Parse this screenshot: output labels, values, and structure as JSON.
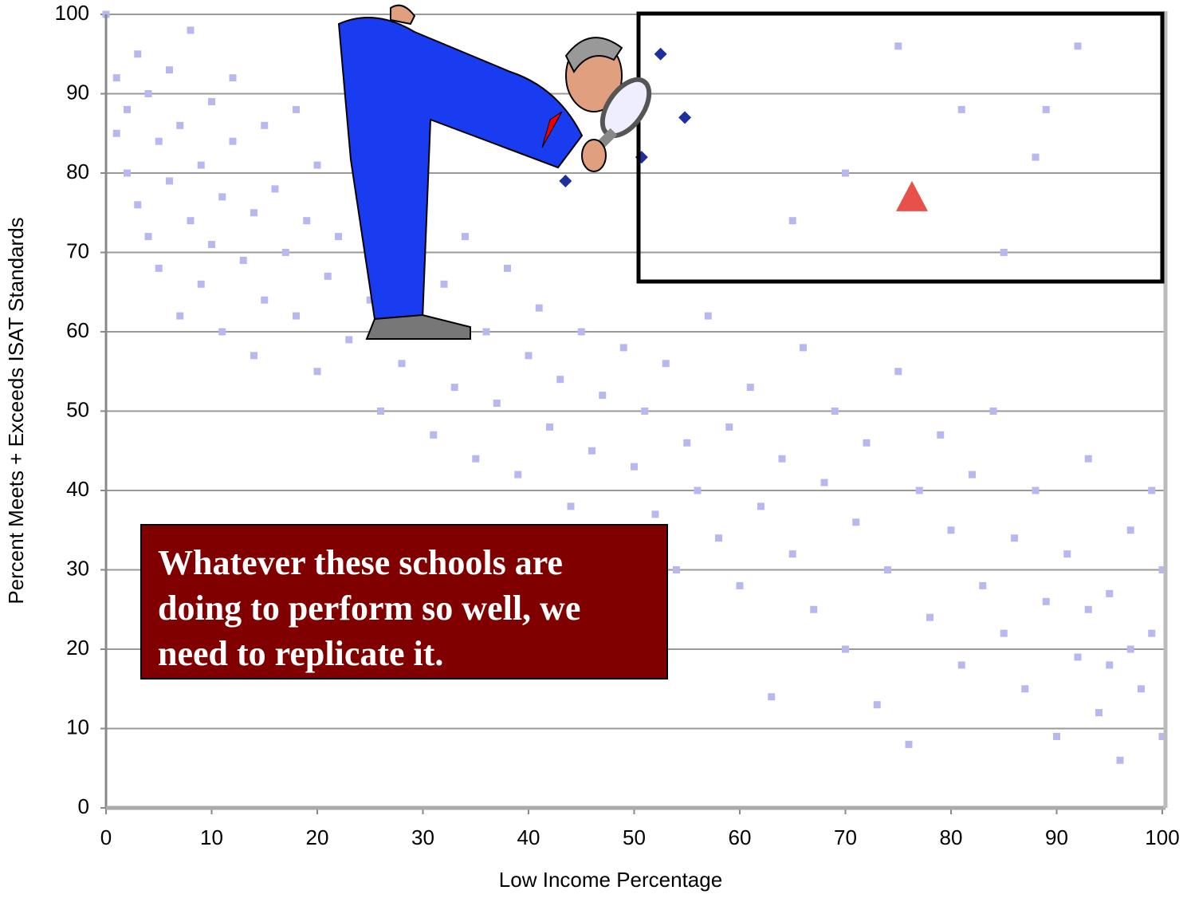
{
  "chart_data": {
    "type": "scatter",
    "ylabel": "Percent Meets + Exceeds ISAT Standards",
    "xlabel": "Low Income Percentage",
    "annotation": "Whatever these schools are doing to perform so well, we need to replicate it.",
    "xlim": [
      0,
      100
    ],
    "ylim": [
      0,
      100
    ],
    "xticks": [
      0,
      10,
      20,
      30,
      40,
      50,
      60,
      70,
      80,
      90,
      100
    ],
    "yticks": [
      0,
      10,
      20,
      30,
      40,
      50,
      60,
      70,
      80,
      90,
      100
    ],
    "grid": true,
    "series": [
      {
        "color": "#b8b8f0",
        "marker": "square",
        "x": [
          0,
          1,
          1,
          2,
          2,
          3,
          3,
          4,
          4,
          5,
          5,
          6,
          6,
          7,
          7,
          8,
          8,
          9,
          9,
          10,
          10,
          11,
          11,
          12,
          12,
          13,
          14,
          14,
          15,
          15,
          16,
          17,
          18,
          18,
          19,
          20,
          20,
          21,
          22,
          23,
          24,
          25,
          26,
          27,
          28,
          29,
          30,
          31,
          32,
          33,
          34,
          35,
          36,
          37,
          38,
          39,
          40,
          41,
          42,
          43,
          44,
          45,
          46,
          47,
          48,
          49,
          50,
          51,
          52,
          53,
          54,
          55,
          56,
          57,
          58,
          59,
          60,
          61,
          62,
          63,
          64,
          65,
          66,
          67,
          68,
          69,
          70,
          71,
          72,
          73,
          74,
          75,
          76,
          77,
          78,
          79,
          80,
          81,
          82,
          83,
          84,
          85,
          86,
          87,
          88,
          89,
          90,
          91,
          92,
          93,
          94,
          95,
          96,
          97,
          98,
          99,
          100,
          100,
          99,
          97,
          95,
          93,
          75,
          81,
          89,
          88,
          92,
          85,
          70,
          65
        ],
        "values": [
          100,
          92,
          85,
          88,
          80,
          95,
          76,
          90,
          72,
          84,
          68,
          93,
          79,
          86,
          62,
          74,
          98,
          81,
          66,
          89,
          71,
          77,
          60,
          84,
          92,
          69,
          75,
          57,
          86,
          64,
          78,
          70,
          62,
          88,
          74,
          81,
          55,
          67,
          72,
          59,
          85,
          64,
          50,
          70,
          56,
          76,
          61,
          47,
          66,
          53,
          72,
          44,
          60,
          51,
          68,
          42,
          57,
          63,
          48,
          54,
          38,
          60,
          45,
          52,
          35,
          58,
          43,
          50,
          37,
          56,
          30,
          46,
          40,
          62,
          34,
          48,
          28,
          53,
          38,
          14,
          44,
          32,
          58,
          25,
          41,
          50,
          20,
          36,
          46,
          13,
          30,
          55,
          8,
          40,
          24,
          47,
          35,
          18,
          42,
          28,
          50,
          22,
          34,
          15,
          40,
          26,
          9,
          32,
          19,
          44,
          12,
          27,
          6,
          35,
          15,
          22,
          9,
          30,
          40,
          20,
          18,
          25,
          96,
          88,
          88,
          82,
          96,
          70,
          80,
          74
        ]
      },
      {
        "color": "#1f2f9e",
        "marker": "diamond",
        "x": [
          43.5,
          50.7,
          52.5,
          54.8
        ],
        "values": [
          79,
          82,
          95,
          87
        ]
      },
      {
        "color": "#e8504a",
        "marker": "triangle",
        "x": [
          76.3
        ],
        "values": [
          77
        ]
      }
    ]
  }
}
